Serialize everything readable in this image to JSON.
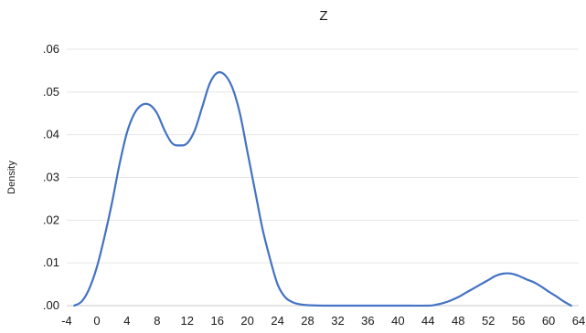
{
  "chart_data": {
    "type": "line",
    "title": "Z",
    "xlabel": "",
    "ylabel": "Density",
    "xlim": [
      -4,
      64
    ],
    "ylim": [
      0,
      0.06
    ],
    "x_ticks": [
      -4,
      0,
      4,
      8,
      12,
      16,
      20,
      24,
      28,
      32,
      36,
      40,
      44,
      48,
      52,
      56,
      60,
      64
    ],
    "y_ticks": [
      {
        "value": 0.0,
        "label": ".00"
      },
      {
        "value": 0.01,
        "label": ".01"
      },
      {
        "value": 0.02,
        "label": ".02"
      },
      {
        "value": 0.03,
        "label": ".03"
      },
      {
        "value": 0.04,
        "label": ".04"
      },
      {
        "value": 0.05,
        "label": ".05"
      },
      {
        "value": 0.06,
        "label": ".06"
      }
    ],
    "grid": true,
    "legend": "none",
    "series": [
      {
        "color": "#4472c4",
        "x": [
          -3,
          -2,
          -1,
          0,
          1,
          2,
          3,
          4,
          5,
          6,
          7,
          8,
          9,
          10,
          11,
          12,
          13,
          14,
          15,
          16,
          17,
          18,
          19,
          20,
          21,
          22,
          23,
          24,
          25,
          26,
          27,
          28,
          30,
          32,
          36,
          40,
          44,
          45,
          46,
          47,
          48,
          49,
          50,
          51,
          52,
          53,
          54,
          55,
          56,
          57,
          58,
          59,
          60,
          61,
          62,
          63
        ],
        "y": [
          0.0,
          0.001,
          0.004,
          0.009,
          0.016,
          0.024,
          0.033,
          0.0405,
          0.045,
          0.047,
          0.047,
          0.045,
          0.041,
          0.038,
          0.0375,
          0.038,
          0.041,
          0.0465,
          0.052,
          0.0545,
          0.054,
          0.051,
          0.045,
          0.036,
          0.027,
          0.018,
          0.011,
          0.005,
          0.002,
          0.0008,
          0.0003,
          0.0001,
          0.0,
          0.0,
          0.0,
          0.0,
          0.0,
          0.0002,
          0.0006,
          0.0012,
          0.002,
          0.003,
          0.004,
          0.005,
          0.006,
          0.007,
          0.0075,
          0.0075,
          0.007,
          0.0062,
          0.0055,
          0.0045,
          0.0033,
          0.0022,
          0.001,
          0.0
        ]
      }
    ]
  }
}
